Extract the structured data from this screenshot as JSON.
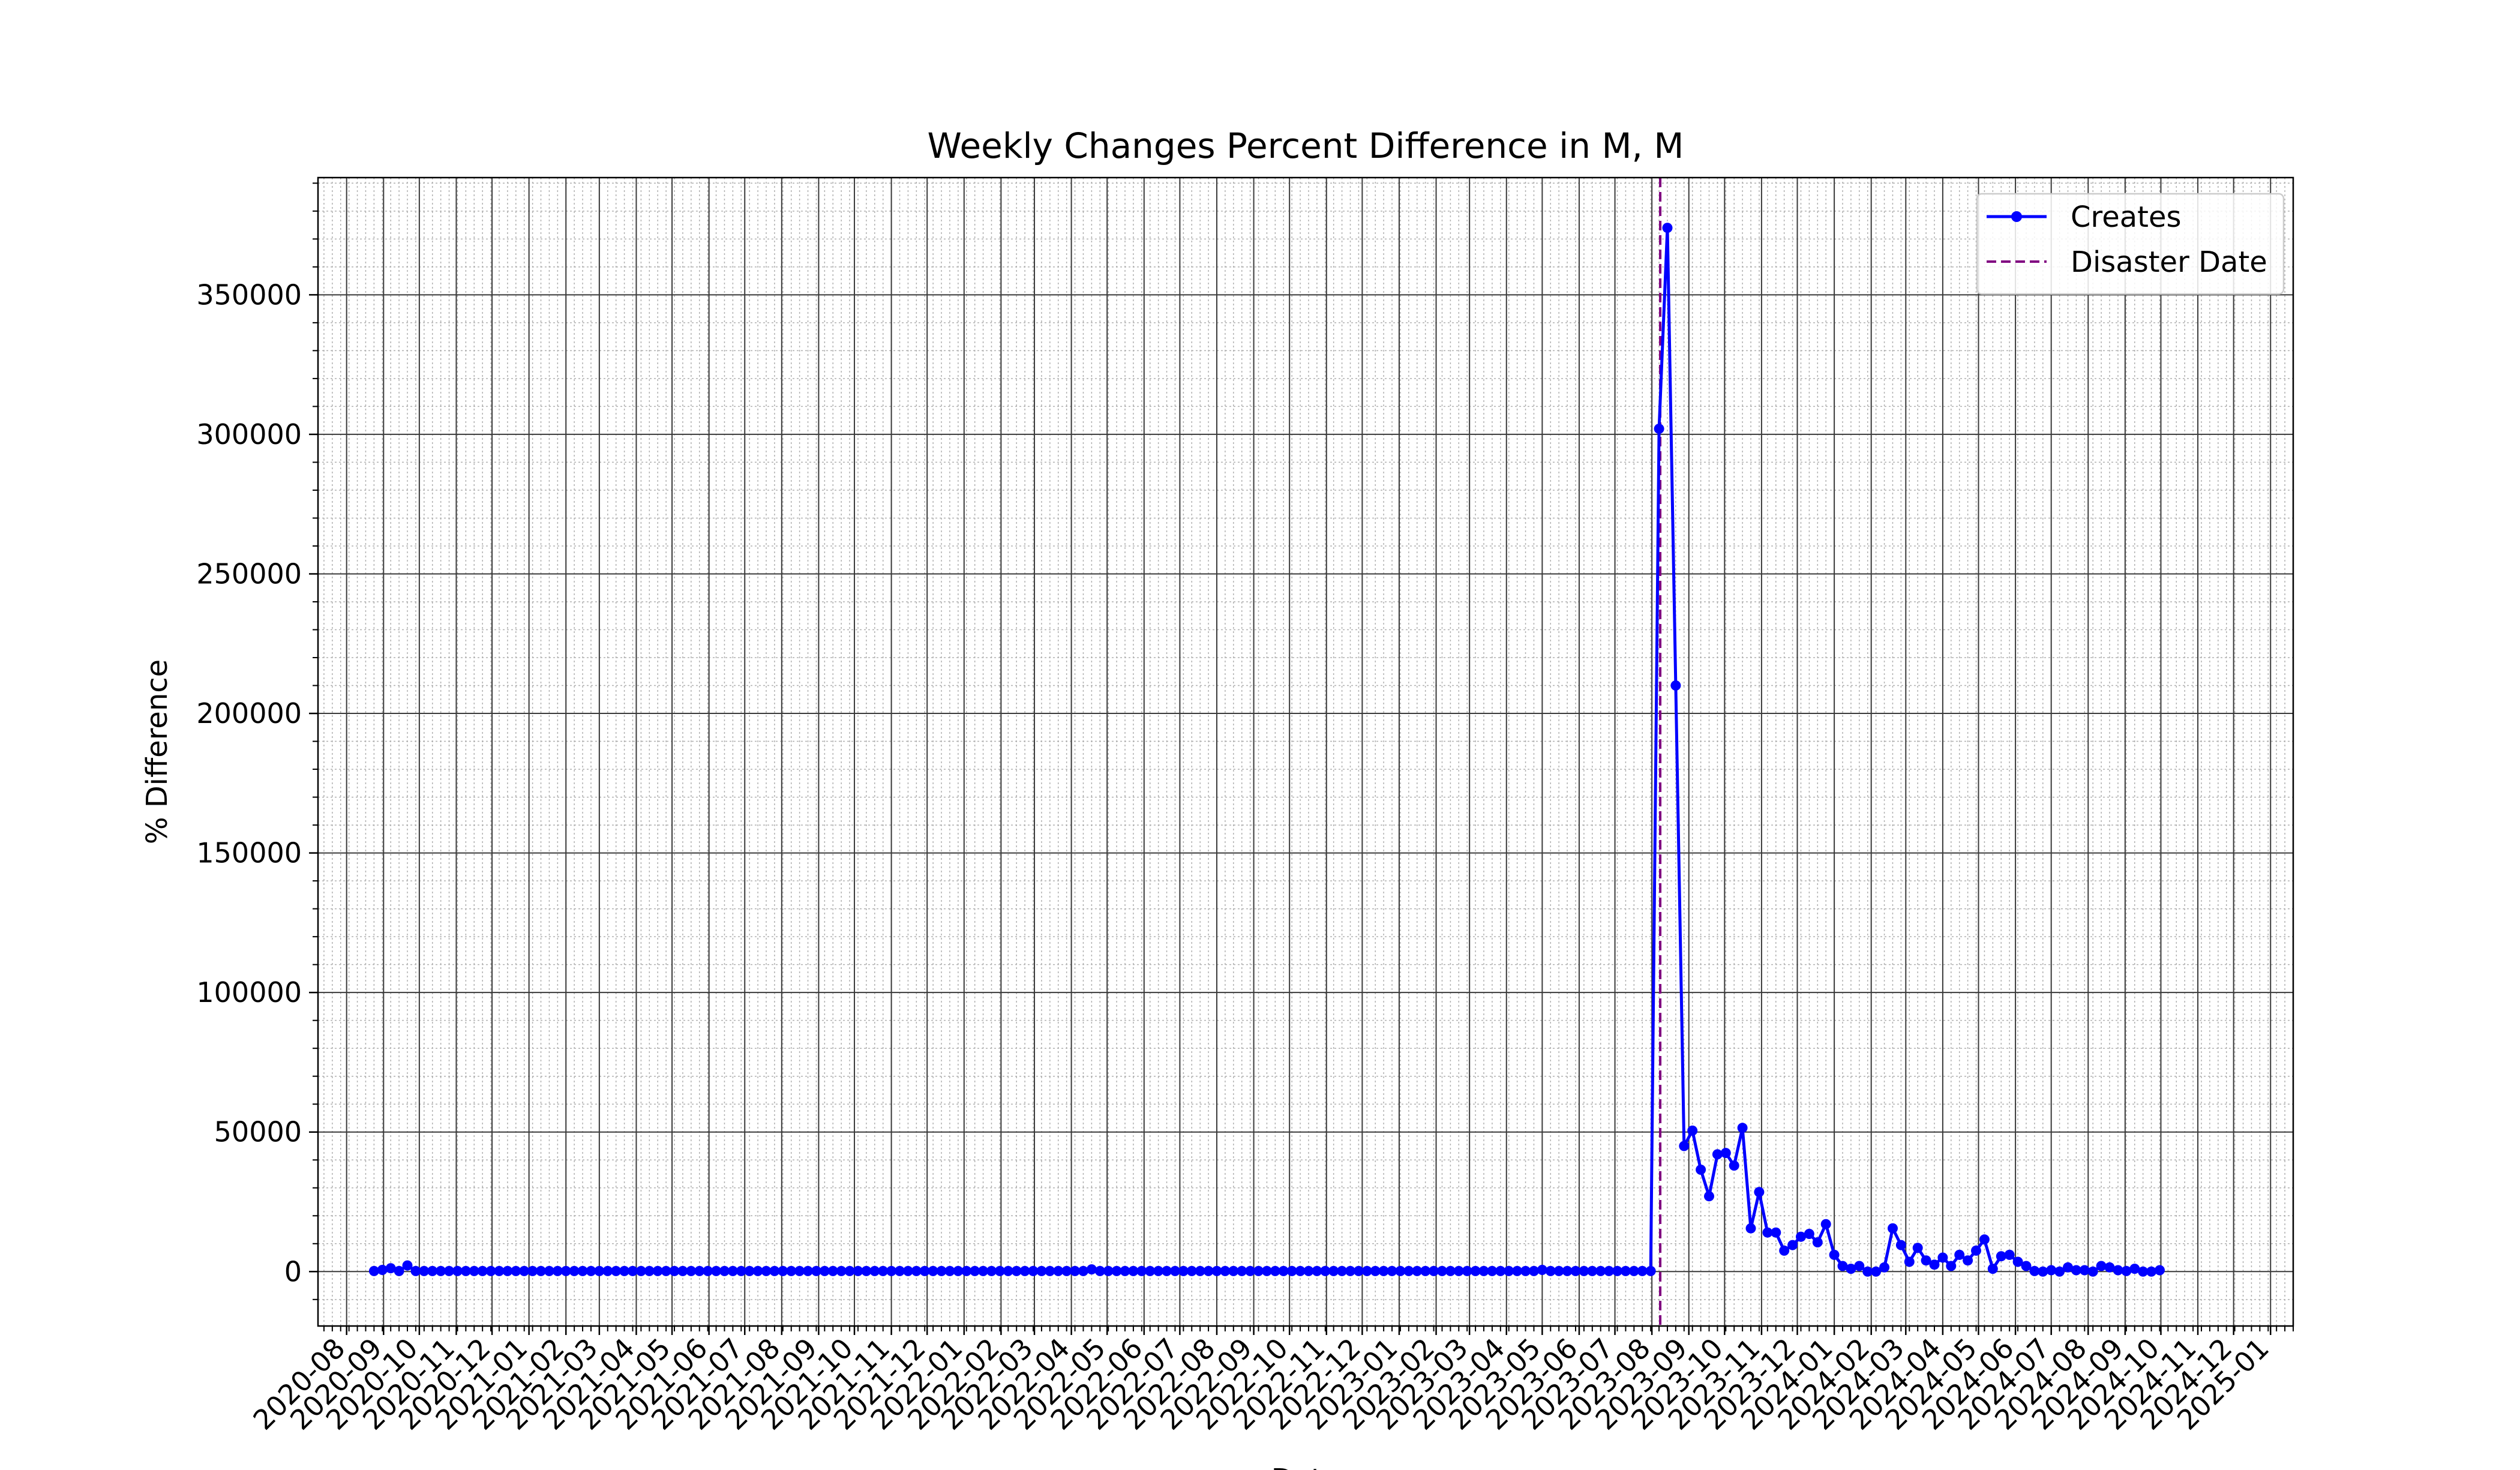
{
  "chart_data": {
    "type": "line",
    "title": "Weekly Changes Percent Difference in M, M",
    "xlabel": "Date",
    "ylabel": "% Difference",
    "xlim": [
      "2020-07-08",
      "2025-01-20"
    ],
    "ylim": [
      -19500,
      392000
    ],
    "y_ticks": [
      0,
      50000,
      100000,
      150000,
      200000,
      250000,
      300000,
      350000
    ],
    "x_ticks": [
      "2020-08",
      "2020-09",
      "2020-10",
      "2020-11",
      "2020-12",
      "2021-01",
      "2021-02",
      "2021-03",
      "2021-04",
      "2021-05",
      "2021-06",
      "2021-07",
      "2021-08",
      "2021-09",
      "2021-10",
      "2021-11",
      "2021-12",
      "2022-01",
      "2022-02",
      "2022-03",
      "2022-04",
      "2022-05",
      "2022-06",
      "2022-07",
      "2022-08",
      "2022-09",
      "2022-10",
      "2022-11",
      "2022-12",
      "2023-01",
      "2023-02",
      "2023-03",
      "2023-04",
      "2023-05",
      "2023-06",
      "2023-07",
      "2023-08",
      "2023-09",
      "2023-10",
      "2023-11",
      "2023-12",
      "2024-01",
      "2024-02",
      "2024-03",
      "2024-04",
      "2024-05",
      "2024-06",
      "2024-07",
      "2024-08",
      "2024-09",
      "2024-10",
      "2024-11",
      "2024-12",
      "2025-01"
    ],
    "grid": true,
    "legend_position": "top-right",
    "disaster": {
      "name": "Disaster Date",
      "date": "2023-08-08",
      "color": "#800080"
    },
    "series": [
      {
        "name": "Creates",
        "color": "#0000ff",
        "baseline": {
          "start": "2020-08-24",
          "end": "2023-07-31",
          "step_days": 7,
          "default": 200,
          "overrides": {
            "2020-08-31": 600,
            "2020-09-07": 1200,
            "2020-09-21": 2200,
            "2022-04-18": 800,
            "2023-05-01": 600
          }
        },
        "points": [
          {
            "x": "2023-08-07",
            "y": 302000
          },
          {
            "x": "2023-08-14",
            "y": 374000
          },
          {
            "x": "2023-08-21",
            "y": 210000
          },
          {
            "x": "2023-08-28",
            "y": 45000
          },
          {
            "x": "2023-09-04",
            "y": 50500
          },
          {
            "x": "2023-09-11",
            "y": 36500
          },
          {
            "x": "2023-09-18",
            "y": 27000
          },
          {
            "x": "2023-09-25",
            "y": 42000
          },
          {
            "x": "2023-10-02",
            "y": 42500
          },
          {
            "x": "2023-10-09",
            "y": 38000
          },
          {
            "x": "2023-10-16",
            "y": 51500
          },
          {
            "x": "2023-10-23",
            "y": 15500
          },
          {
            "x": "2023-10-30",
            "y": 28500
          },
          {
            "x": "2023-11-06",
            "y": 14000
          },
          {
            "x": "2023-11-13",
            "y": 14000
          },
          {
            "x": "2023-11-20",
            "y": 7500
          },
          {
            "x": "2023-11-27",
            "y": 9500
          },
          {
            "x": "2023-12-04",
            "y": 12500
          },
          {
            "x": "2023-12-11",
            "y": 13500
          },
          {
            "x": "2023-12-18",
            "y": 10500
          },
          {
            "x": "2023-12-25",
            "y": 17000
          },
          {
            "x": "2024-01-01",
            "y": 6000
          },
          {
            "x": "2024-01-08",
            "y": 2000
          },
          {
            "x": "2024-01-15",
            "y": 1000
          },
          {
            "x": "2024-01-22",
            "y": 2000
          },
          {
            "x": "2024-01-29",
            "y": 0
          },
          {
            "x": "2024-02-05",
            "y": 0
          },
          {
            "x": "2024-02-12",
            "y": 1500
          },
          {
            "x": "2024-02-19",
            "y": 15500
          },
          {
            "x": "2024-02-26",
            "y": 9500
          },
          {
            "x": "2024-03-04",
            "y": 3500
          },
          {
            "x": "2024-03-11",
            "y": 8500
          },
          {
            "x": "2024-03-18",
            "y": 4000
          },
          {
            "x": "2024-03-25",
            "y": 2500
          },
          {
            "x": "2024-04-01",
            "y": 5000
          },
          {
            "x": "2024-04-08",
            "y": 2000
          },
          {
            "x": "2024-04-15",
            "y": 6000
          },
          {
            "x": "2024-04-22",
            "y": 4000
          },
          {
            "x": "2024-04-29",
            "y": 7500
          },
          {
            "x": "2024-05-06",
            "y": 11500
          },
          {
            "x": "2024-05-13",
            "y": 1000
          },
          {
            "x": "2024-05-20",
            "y": 5500
          },
          {
            "x": "2024-05-27",
            "y": 6000
          },
          {
            "x": "2024-06-03",
            "y": 3500
          },
          {
            "x": "2024-06-10",
            "y": 2000
          },
          {
            "x": "2024-06-17",
            "y": 200
          },
          {
            "x": "2024-06-24",
            "y": 0
          },
          {
            "x": "2024-07-01",
            "y": 500
          },
          {
            "x": "2024-07-08",
            "y": 0
          },
          {
            "x": "2024-07-15",
            "y": 1500
          },
          {
            "x": "2024-07-22",
            "y": 500
          },
          {
            "x": "2024-07-29",
            "y": 500
          },
          {
            "x": "2024-08-05",
            "y": 0
          },
          {
            "x": "2024-08-12",
            "y": 2000
          },
          {
            "x": "2024-08-19",
            "y": 1500
          },
          {
            "x": "2024-08-26",
            "y": 500
          },
          {
            "x": "2024-09-02",
            "y": 200
          },
          {
            "x": "2024-09-09",
            "y": 1000
          },
          {
            "x": "2024-09-16",
            "y": 0
          },
          {
            "x": "2024-09-23",
            "y": 0
          },
          {
            "x": "2024-09-30",
            "y": 500
          }
        ]
      }
    ]
  }
}
